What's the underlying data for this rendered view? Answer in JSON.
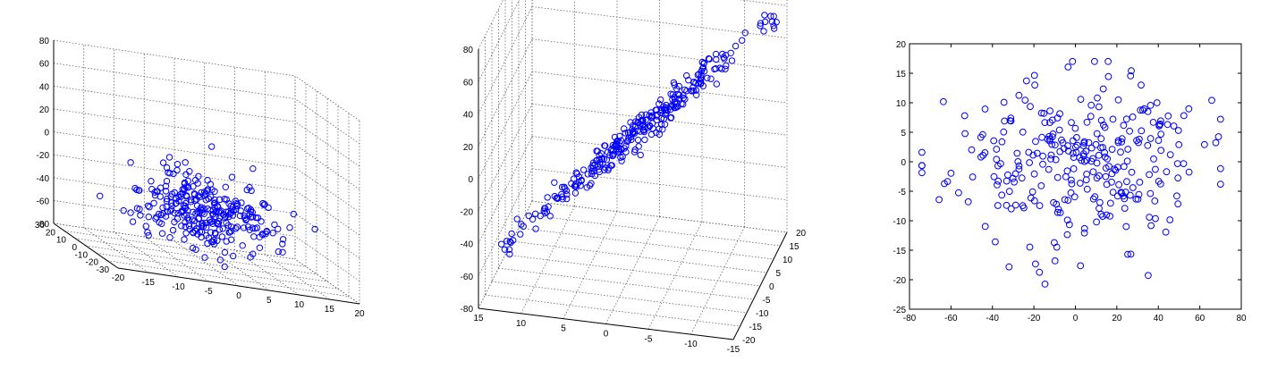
{
  "figure": {
    "title": ""
  },
  "colors": {
    "marker": "#0000ff",
    "axis": "#000000",
    "grid": "#555555"
  },
  "chart_data": [
    {
      "type": "scatter",
      "projection": "3d",
      "title": "",
      "xlabel": "",
      "ylabel": "",
      "zlabel": "",
      "xlim": [
        -20,
        20
      ],
      "ylim": [
        -30,
        30
      ],
      "zlim": [
        -80,
        80
      ],
      "xticks": [
        -20,
        -15,
        -10,
        -5,
        0,
        5,
        10,
        15,
        20
      ],
      "yticks": [
        -30,
        -20,
        -10,
        0,
        10,
        20,
        30
      ],
      "zticks": [
        -80,
        -60,
        -40,
        -20,
        0,
        20,
        40,
        60,
        80
      ],
      "grid": true,
      "marker": "circle",
      "points": {
        "count": 300,
        "distribution": "normal",
        "x_sd": 6,
        "y_sd": 10,
        "z_sd": 15,
        "z_mean": -35
      }
    },
    {
      "type": "scatter",
      "projection": "3d",
      "title": "",
      "xlabel": "",
      "ylabel": "",
      "zlabel": "",
      "xlim": [
        -15,
        15
      ],
      "ylim": [
        -20,
        20
      ],
      "zlim": [
        -80,
        80
      ],
      "xticks": [
        15,
        10,
        5,
        0,
        -5,
        -10,
        -15
      ],
      "yticks": [
        -20,
        -15,
        -10,
        -5,
        0,
        5,
        10,
        15,
        20
      ],
      "zticks": [
        -80,
        -60,
        -40,
        -20,
        0,
        20,
        40,
        60,
        80
      ],
      "grid": true,
      "marker": "circle",
      "points": {
        "count": 300,
        "distribution": "linear",
        "t_range": [
          -1,
          1
        ],
        "noise_sd": 0.04
      }
    },
    {
      "type": "scatter",
      "title": "",
      "xlabel": "",
      "ylabel": "",
      "xlim": [
        -80,
        80
      ],
      "ylim": [
        -25,
        20
      ],
      "xticks": [
        -80,
        -60,
        -40,
        -20,
        0,
        20,
        40,
        60,
        80
      ],
      "yticks": [
        -25,
        -20,
        -15,
        -10,
        -5,
        0,
        5,
        10,
        15,
        20
      ],
      "grid": false,
      "marker": "circle",
      "points": {
        "count": 300,
        "distribution": "normal",
        "x_mean": 0,
        "x_sd": 30,
        "y_mean": 0,
        "y_sd": 7
      }
    }
  ]
}
